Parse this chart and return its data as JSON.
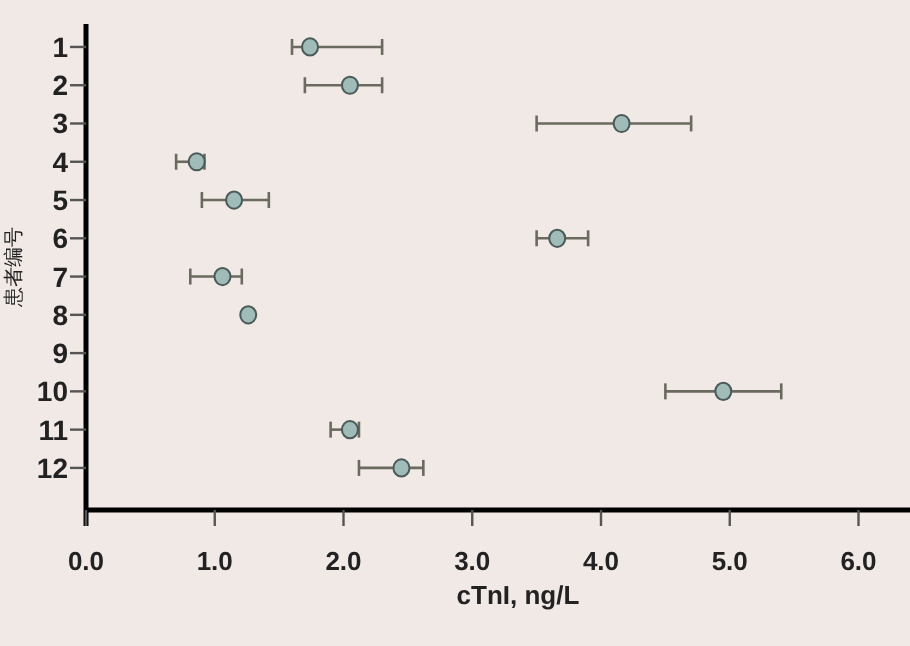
{
  "chart_data": {
    "type": "scatter",
    "orientation": "horizontal",
    "xlabel": "cTnI, ng/L",
    "ylabel": "患者编号",
    "categories": [
      "1",
      "2",
      "3",
      "4",
      "5",
      "6",
      "7",
      "8",
      "9",
      "10",
      "11",
      "12"
    ],
    "values": [
      1.74,
      2.05,
      4.16,
      0.86,
      1.15,
      3.66,
      1.06,
      1.26,
      null,
      4.95,
      2.05,
      2.45
    ],
    "errors": [
      [
        1.6,
        2.3
      ],
      [
        1.7,
        2.3
      ],
      [
        3.5,
        4.7
      ],
      [
        0.7,
        0.92
      ],
      [
        0.9,
        1.42
      ],
      [
        3.5,
        3.9
      ],
      [
        0.81,
        1.21
      ],
      null,
      null,
      [
        4.5,
        5.4
      ],
      [
        1.9,
        2.12
      ],
      [
        2.12,
        2.62
      ]
    ],
    "color": "#9fbcb8",
    "marker": "circle",
    "grid": false,
    "xlim": [
      0,
      6.4
    ],
    "xticks": [
      {
        "value": 0,
        "label": "0.0"
      },
      {
        "value": 1,
        "label": "1.0"
      },
      {
        "value": 2,
        "label": "2.0"
      },
      {
        "value": 3,
        "label": "3.0"
      },
      {
        "value": 4,
        "label": "4.0"
      },
      {
        "value": 5,
        "label": "5.0"
      },
      {
        "value": 6,
        "label": "6.0"
      }
    ]
  }
}
